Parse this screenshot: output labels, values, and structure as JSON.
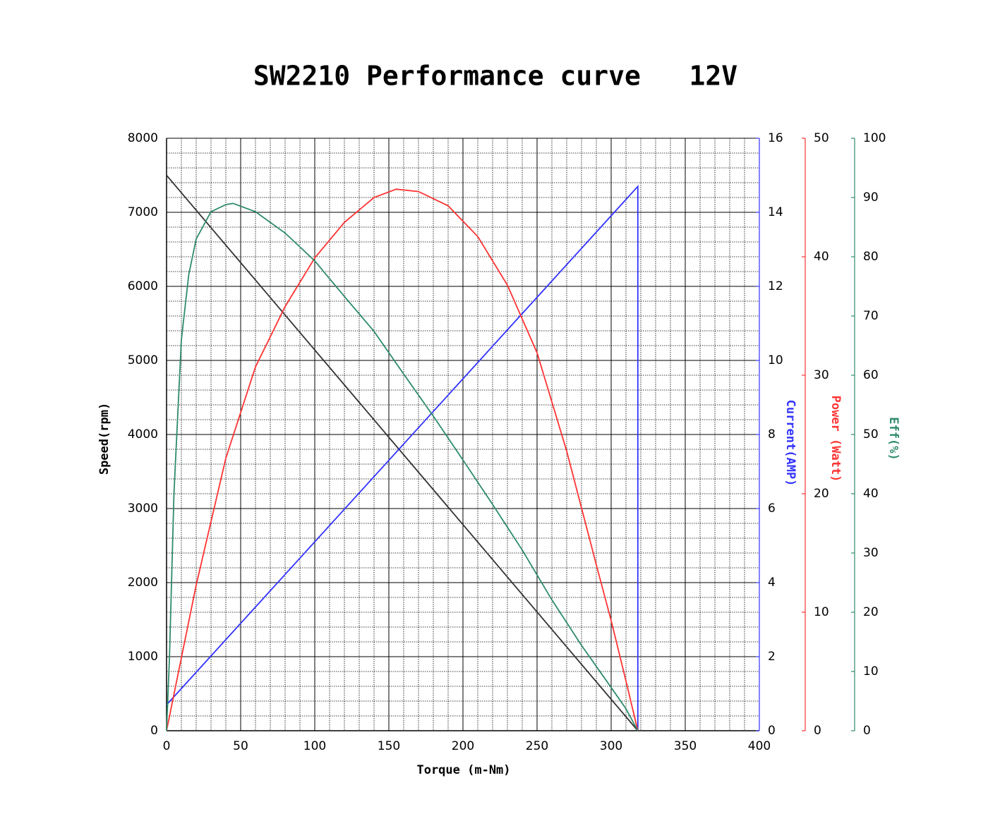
{
  "chart_data": {
    "type": "line",
    "title": "SW2210 Performance curve   12V",
    "x_label": "Torque (m-Nm)",
    "y_label": "Speed(rpm)",
    "y2_label": "Current(AMP)",
    "y3_label": "Power (Watt)",
    "y4_label": "Eff(%)",
    "xlim": [
      0,
      400
    ],
    "xticks": [
      0,
      50,
      100,
      150,
      200,
      250,
      300,
      350,
      400
    ],
    "ylim": [
      0,
      8000
    ],
    "yticks": [
      0,
      1000,
      2000,
      3000,
      4000,
      5000,
      6000,
      7000,
      8000
    ],
    "y2lim": [
      0,
      16
    ],
    "y2ticks": [
      0,
      2,
      4,
      6,
      8,
      10,
      12,
      14,
      16
    ],
    "y3lim": [
      0,
      50
    ],
    "y3ticks": [
      0,
      10,
      20,
      30,
      40,
      50
    ],
    "y4lim": [
      0,
      100
    ],
    "y4ticks": [
      0,
      10,
      20,
      30,
      40,
      50,
      60,
      70,
      80,
      90,
      100
    ],
    "grid": true,
    "series": [
      {
        "name": "Speed",
        "color": "#333333",
        "axis": "y",
        "x": [
          0,
          318
        ],
        "values": [
          7500,
          0
        ]
      },
      {
        "name": "Current",
        "color": "#3333ff",
        "axis": "y2",
        "x": [
          0,
          318,
          318
        ],
        "values": [
          0.7,
          14.7,
          0
        ]
      },
      {
        "name": "Power",
        "color": "#ff3333",
        "axis": "y3",
        "x": [
          0,
          20,
          40,
          60,
          80,
          100,
          120,
          140,
          155,
          170,
          190,
          210,
          230,
          250,
          270,
          290,
          300,
          310,
          318
        ],
        "values": [
          0,
          12.3,
          23,
          30.7,
          35.8,
          39.9,
          42.9,
          45,
          45.7,
          45.5,
          44.3,
          41.7,
          37.6,
          31.9,
          23.6,
          14,
          9.3,
          4.2,
          0
        ]
      },
      {
        "name": "Eff",
        "color": "#2e8b6b",
        "axis": "y4",
        "x": [
          0,
          2,
          5,
          10,
          15,
          20,
          30,
          40,
          45,
          60,
          80,
          100,
          120,
          140,
          160,
          180,
          200,
          220,
          240,
          260,
          280,
          300,
          310,
          318
        ],
        "values": [
          0,
          12.6,
          40,
          66,
          77,
          83,
          87.6,
          88.8,
          89,
          87.6,
          84,
          79.3,
          73.3,
          67.4,
          60.2,
          53.1,
          45.7,
          38.2,
          30.5,
          22.1,
          14.4,
          7.3,
          3.7,
          0
        ]
      }
    ]
  }
}
